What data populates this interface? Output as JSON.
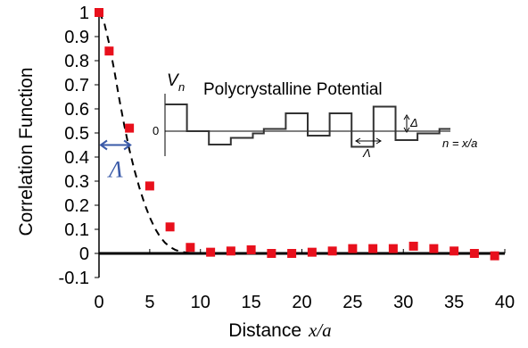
{
  "chart_data": {
    "type": "scatter",
    "x": [
      0,
      1,
      3,
      5,
      7,
      9,
      11,
      13,
      15,
      17,
      19,
      21,
      23,
      25,
      27,
      29,
      31,
      33,
      35,
      37,
      39
    ],
    "y": [
      1.0,
      0.84,
      0.52,
      0.28,
      0.11,
      0.025,
      0.005,
      0.01,
      0.015,
      0.0,
      0.0,
      0.005,
      0.01,
      0.02,
      0.02,
      0.02,
      0.03,
      0.02,
      0.01,
      0.0,
      -0.01
    ],
    "xlim": [
      0,
      40
    ],
    "ylim": [
      -0.1,
      1
    ],
    "xticks": [
      "0",
      "5",
      "10",
      "15",
      "20",
      "25",
      "30",
      "35",
      "40"
    ],
    "yticks": [
      "-0.1",
      "0",
      "0.1",
      "0.2",
      "0.3",
      "0.4",
      "0.5",
      "0.6",
      "0.7",
      "0.8",
      "0.9",
      "1"
    ],
    "xlabel_text": "Distance",
    "xlabel_var": "x/a",
    "ylabel": "Correlation Function",
    "marker_color": "#e8101c",
    "fit_curve": {
      "style": "dashed",
      "x": [
        0,
        0.5,
        1,
        1.5,
        2,
        2.5,
        3,
        3.5,
        4,
        4.5,
        5,
        5.5,
        6,
        6.5,
        7,
        7.5,
        8,
        8.5,
        9,
        9.5,
        10
      ],
      "y": [
        1.0,
        0.96,
        0.87,
        0.76,
        0.64,
        0.53,
        0.43,
        0.345,
        0.27,
        0.205,
        0.15,
        0.105,
        0.07,
        0.045,
        0.027,
        0.015,
        0.008,
        0.004,
        0.002,
        0.001,
        0.0
      ]
    },
    "lambda_marker": {
      "label": "Λ",
      "x_range": [
        0,
        3
      ],
      "y": 0.45,
      "color": "#3a5aa8"
    },
    "inset": {
      "title": "Polycrystalline Potential",
      "y_label": "V",
      "y_label_sub": "n",
      "zero_label": "0",
      "x_label": "n = x/a",
      "delta_label": "Δ",
      "lambda_label": "Λ",
      "step_levels": [
        0.6,
        0.6,
        0.0,
        0.0,
        -0.3,
        -0.3,
        -0.15,
        -0.15,
        -0.05,
        0.05,
        0.05,
        0.4,
        0.4,
        -0.1,
        -0.1,
        0.4,
        0.4,
        -0.35,
        -0.35,
        0.55,
        0.55,
        -0.2,
        -0.2,
        -0.05,
        -0.05,
        0.05
      ]
    }
  }
}
